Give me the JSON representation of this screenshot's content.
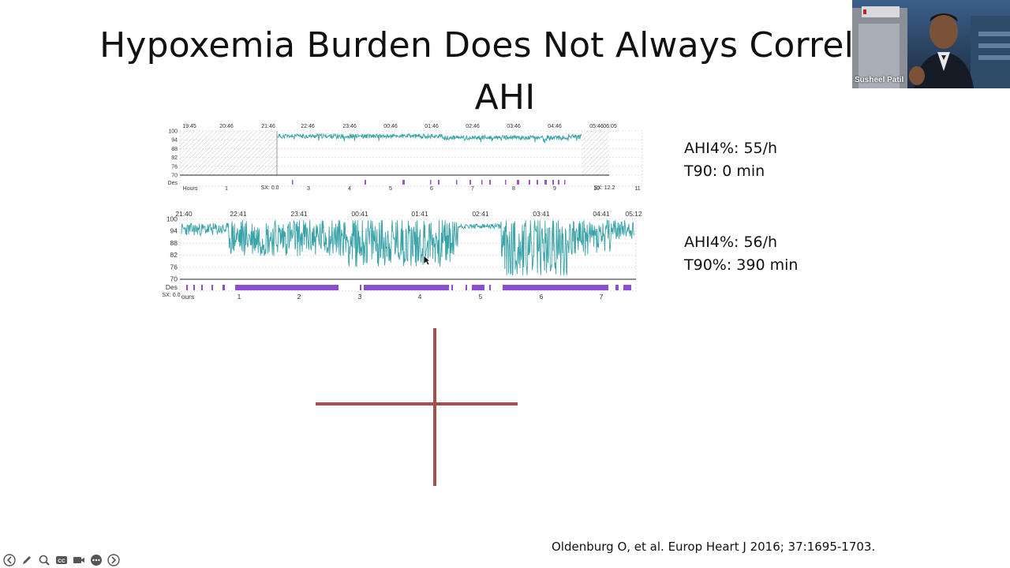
{
  "slide": {
    "title_line1": "Hypoxemia Burden Does Not Always Correlate",
    "title_line2": "AHI",
    "stats1": {
      "line1": "AHI4%: 55/h",
      "line2": "T90: 0 min"
    },
    "stats2": {
      "line1": "AHI4%: 56/h",
      "line2": "T90%: 390 min"
    },
    "citation": "Oldenburg O, et al. Europ Heart J 2016; 37:1695-1703."
  },
  "video": {
    "speaker_name": "Susheel Patil"
  },
  "toolbar": {
    "buttons": [
      "back-icon",
      "pen-icon",
      "zoom-icon",
      "captions-icon",
      "video-icon",
      "more-icon",
      "forward-icon"
    ],
    "captions_label": "CC"
  },
  "chart_data": [
    {
      "type": "line",
      "title": "",
      "time_labels": [
        "19:45",
        "20:46",
        "21:46",
        "22:46",
        "23:46",
        "00:46",
        "01:46",
        "02:46",
        "03:46",
        "04:46",
        "05:46",
        "06:05"
      ],
      "ylabel_ticks": [
        "100",
        "94",
        "88",
        "82",
        "76",
        "70",
        "Des"
      ],
      "hour_labels": [
        "Hours",
        "1",
        "3",
        "4",
        "5",
        "6",
        "7",
        "8",
        "9",
        "10",
        "11"
      ],
      "extra_labels": [
        "SX: 0.0",
        "SX: 12.2"
      ],
      "ylim": [
        70,
        100
      ],
      "series": [
        {
          "values_description_range": [
            90,
            98
          ]
        }
      ],
      "desaturation_marker_color": "#9b59c9",
      "line_color": "#3aa3a8"
    },
    {
      "type": "line",
      "title": "",
      "time_labels": [
        "21:40",
        "22:41",
        "23:41",
        "00:41",
        "01:41",
        "02:41",
        "03:41",
        "04:41",
        "05:12"
      ],
      "ylabel_ticks": [
        "100",
        "94",
        "88",
        "82",
        "76",
        "70",
        "Des"
      ],
      "hour_labels": [
        "ours",
        "1",
        "2",
        "3",
        "4",
        "5",
        "6",
        "7"
      ],
      "extra_labels": [
        "SX: 0.0"
      ],
      "ylim": [
        70,
        100
      ],
      "line_color": "#3aa3a8",
      "desaturation_marker_color": "#8a4fd1"
    }
  ]
}
